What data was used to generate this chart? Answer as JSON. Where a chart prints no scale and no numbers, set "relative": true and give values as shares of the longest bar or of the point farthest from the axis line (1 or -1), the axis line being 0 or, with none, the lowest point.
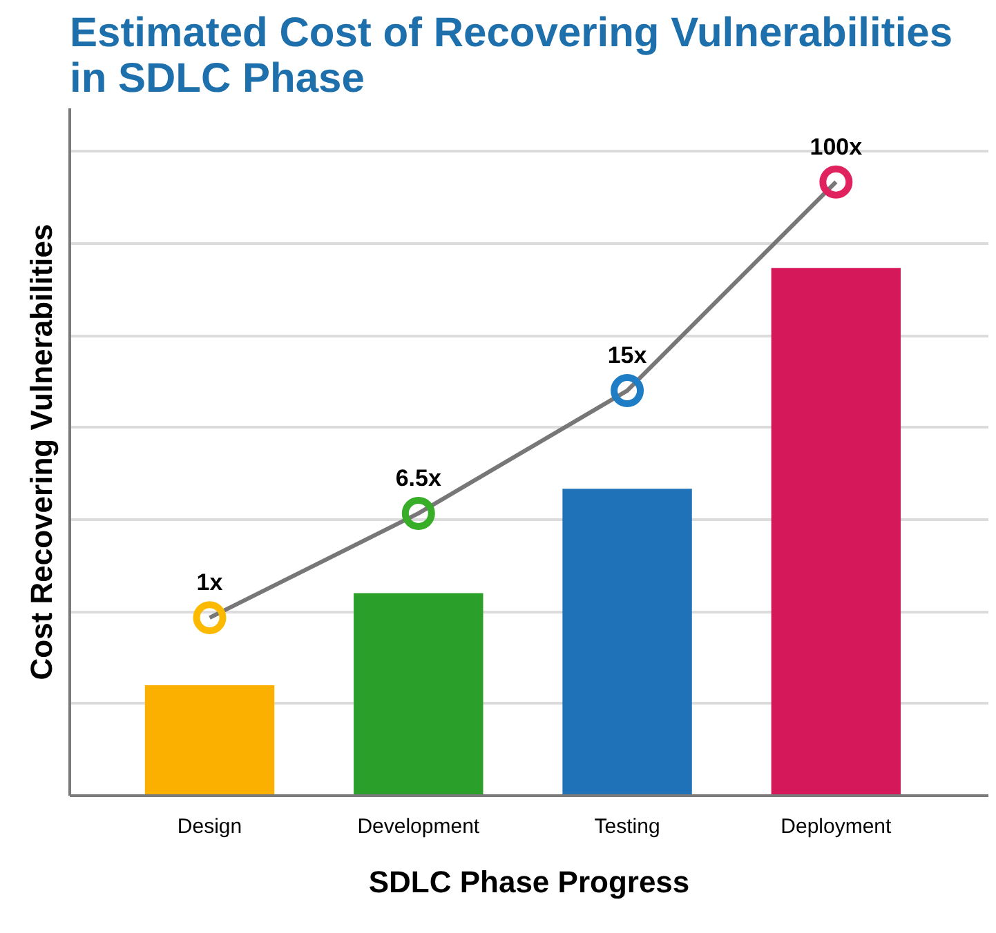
{
  "chart_data": {
    "type": "bar",
    "title": "Estimated Cost of Recovering Vulnerabilities in SDLC Phase",
    "xlabel": "SDLC Phase Progress",
    "ylabel": "Cost Recovering Vulnerabilities",
    "categories": [
      "Design",
      "Development",
      "Testing",
      "Deployment"
    ],
    "relative": true,
    "grid": "y",
    "marker": "circle",
    "series": [
      {
        "colors": [
          "#fbb000",
          "#2a9f2a",
          "#1f72b8",
          "#d4185a"
        ],
        "values": [
          0.18,
          0.33,
          0.5,
          0.86
        ]
      },
      {
        "type": "line",
        "color": "#777777",
        "colors": [
          "#fbb900",
          "#37ad28",
          "#1e7dc4",
          "#e0225e"
        ],
        "values": [
          0.29,
          0.46,
          0.66,
          1
        ]
      }
    ],
    "annotations": [
      {
        "text": "1x",
        "x": "Design",
        "y": 0.29
      },
      {
        "text": "6.5x",
        "x": "Development",
        "y": 0.46
      },
      {
        "text": "15x",
        "x": "Testing",
        "y": 0.66
      },
      {
        "text": "100x",
        "x": "Deployment",
        "y": 1
      }
    ]
  }
}
